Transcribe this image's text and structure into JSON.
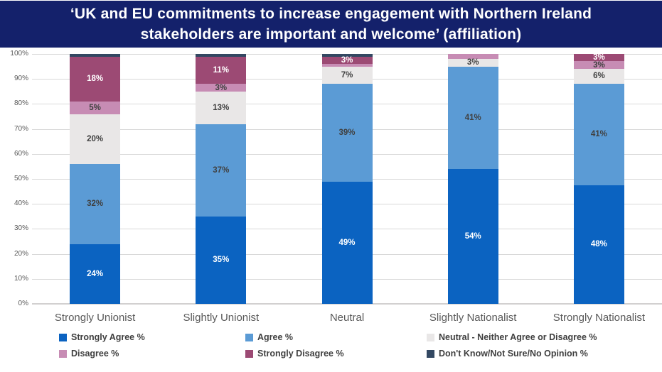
{
  "chart_data": {
    "type": "bar",
    "subtype": "stacked-100",
    "title_line1": "‘UK and EU commitments to increase engagement with Northern Ireland",
    "title_line2": "stakeholders are important and welcome’ (affiliation)",
    "title_bg_color": "#14216B",
    "categories": [
      "Strongly Unionist",
      "Slightly Unionist",
      "Neutral",
      "Slightly Nationalist",
      "Strongly Nationalist"
    ],
    "series": [
      {
        "name": "Strongly Agree %",
        "color": "#0B63C1",
        "label_color": "#FFFFFF",
        "values": [
          24,
          35,
          49,
          54,
          48
        ]
      },
      {
        "name": "Agree %",
        "color": "#5B9BD5",
        "label_color": "#404040",
        "values": [
          32,
          37,
          39,
          41,
          41
        ]
      },
      {
        "name": "Neutral - Neither Agree or Disagree %",
        "color": "#E9E7E7",
        "label_color": "#404040",
        "values": [
          20,
          13,
          7,
          3,
          6
        ]
      },
      {
        "name": "Disagree %",
        "color": "#C78CB4",
        "label_color": "#404040",
        "values": [
          5,
          3,
          1,
          2,
          3
        ]
      },
      {
        "name": "Strongly Disagree %",
        "color": "#9C4A74",
        "label_color": "#FFFFFF",
        "values": [
          18,
          11,
          3,
          0,
          3
        ]
      },
      {
        "name": "Don't Know/Not Sure/No Opinion %",
        "color": "#334862",
        "label_color": "#FFFFFF",
        "values": [
          1,
          1,
          1,
          0,
          0
        ]
      }
    ],
    "y_ticks": [
      "0%",
      "10%",
      "20%",
      "30%",
      "40%",
      "50%",
      "60%",
      "70%",
      "80%",
      "90%",
      "100%"
    ],
    "ylim": [
      0,
      100
    ],
    "grid": true,
    "gridline_color": "#D9D9D9",
    "axis_text_color": "#595959",
    "label_threshold": 3,
    "legend_position": "bottom"
  }
}
